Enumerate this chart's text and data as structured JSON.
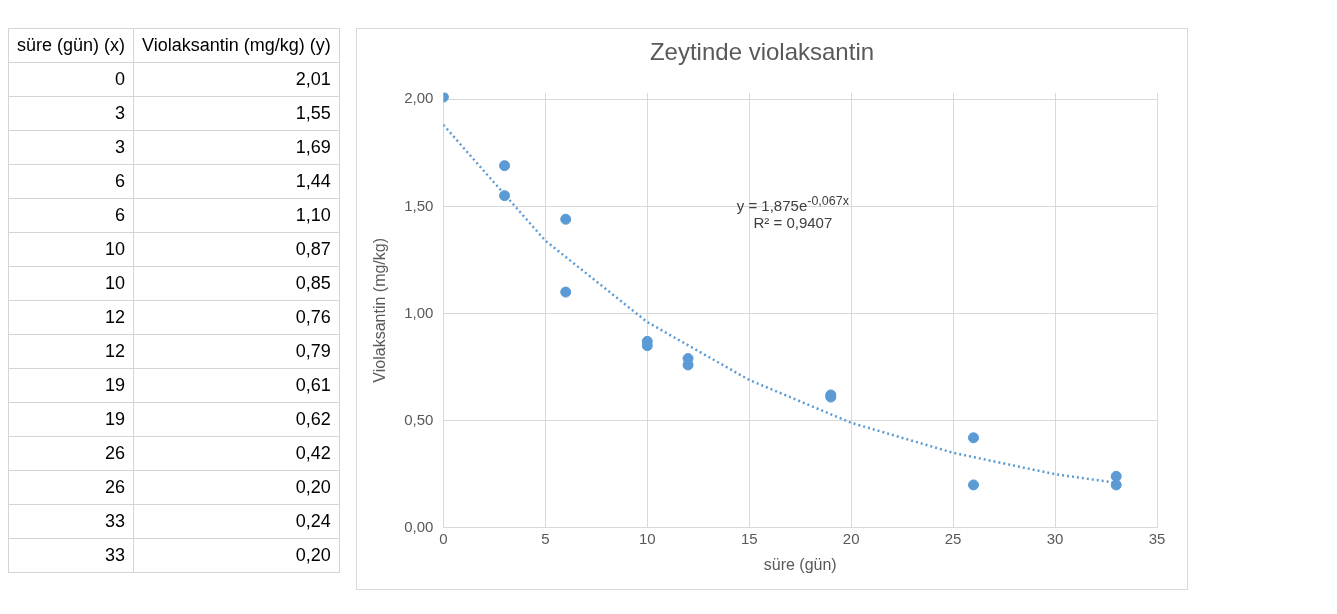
{
  "chart_data": [
    {
      "type": "other",
      "annotations": [
        "süre (gün) (x)",
        "Violaksantin (mg/kg) (y)",
        "0",
        "2,01",
        "3",
        "1,55",
        "3",
        "1,69",
        "6",
        "1,44",
        "6",
        "1,10",
        "10",
        "0,87",
        "10",
        "0,85",
        "12",
        "0,76",
        "12",
        "0,79",
        "19",
        "0,61",
        "19",
        "0,62",
        "26",
        "0,42",
        "26",
        "0,20",
        "33",
        "0,24",
        "33",
        "0,20"
      ]
    },
    {
      "type": "scatter",
      "title": "Zeytinde violaksantin",
      "xlabel": "süre (gün)",
      "ylabel": "Violaksantin (mg/kg)",
      "annotations": [
        "y = 1,875e$^{-0,067x}$",
        "R² = 0,9407"
      ],
      "xlim": [
        0,
        35
      ],
      "xticks": [
        0,
        5,
        10,
        15,
        20,
        25,
        30,
        35
      ],
      "ylim": [
        0,
        2.03
      ],
      "yticks": [
        {
          "value": 0,
          "label": "0,00"
        },
        {
          "value": 0.5,
          "label": "0,50"
        },
        {
          "value": 1,
          "label": "1,00"
        },
        {
          "value": 1.5,
          "label": "1,50"
        },
        {
          "value": 2,
          "label": "2,00"
        }
      ],
      "grid": true,
      "series": [
        {
          "type": "scatter",
          "color": "#5b9bd5",
          "marker": "circle",
          "x": [
            0,
            3,
            3,
            6,
            6,
            10,
            10,
            12,
            12,
            19,
            19,
            26,
            26,
            33,
            33
          ],
          "values": [
            2.01,
            1.55,
            1.69,
            1.44,
            1.1,
            0.87,
            0.85,
            0.76,
            0.79,
            0.61,
            0.62,
            0.42,
            0.2,
            0.24,
            0.2
          ]
        },
        {
          "type": "line",
          "color": "#5b9bd5",
          "marker": "none",
          "line_style": "dotted",
          "x": [
            0,
            5,
            10,
            15,
            20,
            25,
            30,
            33
          ],
          "values": [
            1.88,
            1.34,
            0.96,
            0.69,
            0.49,
            0.35,
            0.25,
            0.21
          ]
        }
      ]
    }
  ]
}
